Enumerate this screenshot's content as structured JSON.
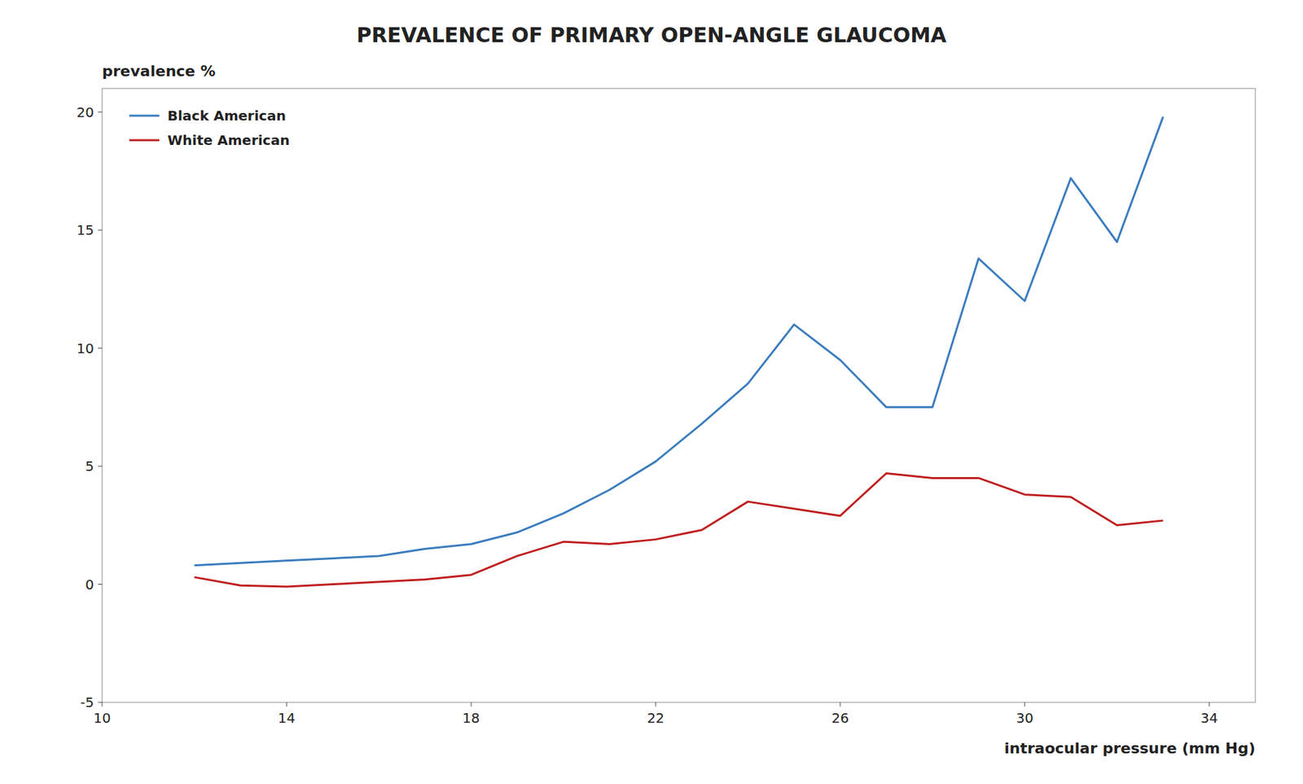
{
  "chart_data": {
    "type": "line",
    "title": "PREVALENCE OF PRIMARY OPEN-ANGLE GLAUCOMA",
    "xlabel": "intraocular pressure (mm Hg)",
    "ylabel": "prevalence %",
    "x": [
      12,
      13,
      14,
      15,
      16,
      17,
      18,
      19,
      20,
      21,
      22,
      23,
      24,
      25,
      26,
      27,
      28,
      29,
      30,
      31,
      32,
      33
    ],
    "series": [
      {
        "name": "Black American",
        "color": "#3b7dbf",
        "values": [
          0.8,
          0.9,
          1.0,
          1.1,
          1.2,
          1.5,
          1.7,
          2.2,
          3.0,
          4.0,
          5.2,
          6.8,
          8.5,
          11.0,
          9.5,
          7.5,
          7.5,
          13.8,
          12.0,
          17.2,
          14.5,
          19.8
        ]
      },
      {
        "name": "White American",
        "color": "#bf2020",
        "values": [
          0.3,
          -0.05,
          -0.1,
          0.0,
          0.1,
          0.2,
          0.4,
          1.2,
          1.8,
          1.7,
          1.9,
          2.3,
          3.5,
          3.2,
          2.9,
          4.7,
          4.5,
          4.5,
          3.8,
          3.7,
          2.5,
          2.7
        ]
      }
    ],
    "xlim": [
      10,
      35
    ],
    "ylim": [
      -5,
      21
    ],
    "xticks": [
      10,
      14,
      18,
      22,
      26,
      30,
      34
    ],
    "yticks": [
      -5,
      0,
      5,
      10,
      15,
      20
    ],
    "grid": false,
    "legend": "upper left"
  }
}
